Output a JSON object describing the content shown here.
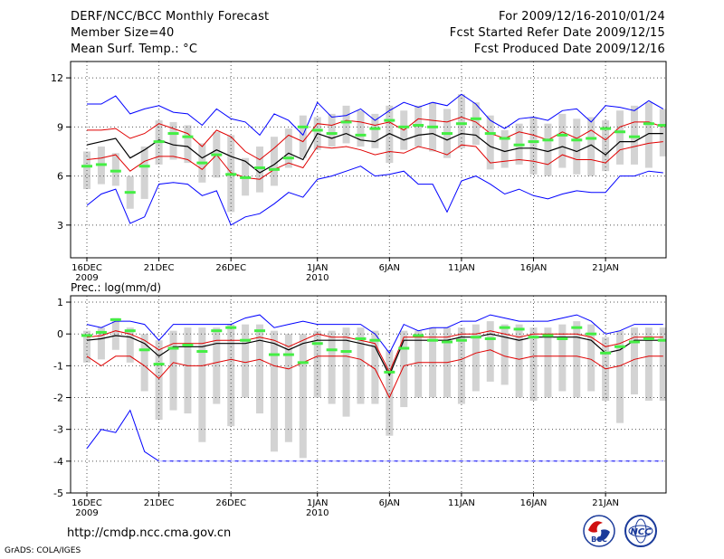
{
  "header": {
    "title": "DERF/NCC/BCC Monthly Forecast",
    "member_size": "Member Size=40",
    "variable": "Mean Surf. Temp.: °C",
    "period": "For 2009/12/16-2010/01/24",
    "start_date": "Fcst Started Refer Date 2009/12/15",
    "produced_date": "Fcst Produced Date 2009/12/16"
  },
  "footer": {
    "url": "http://cmdp.ncc.cma.gov.cn",
    "credit": "GrADS: COLA/IGES"
  },
  "logos": {
    "bcc_text": "BCC",
    "ncc_text": "NCC"
  },
  "colors": {
    "upper_envelope": "#0000ff",
    "lower_envelope": "#0000ff",
    "spread_band": "#e00000",
    "ensemble_mean": "#000000",
    "member_box": "#d3d3d3",
    "median_tick": "#44ee44",
    "grid": "#555555"
  },
  "chart_data": [
    {
      "type": "line",
      "id": "temperature",
      "title": "",
      "ylabel": "Mean Surf. Temp.: °C",
      "ylim": [
        1.0,
        13.0
      ],
      "yticks": [
        3,
        6,
        9,
        12
      ],
      "grid": true,
      "xticks": [
        {
          "day": 0,
          "label": "16DEC",
          "sub": "2009"
        },
        {
          "day": 5,
          "label": "21DEC",
          "sub": ""
        },
        {
          "day": 10,
          "label": "26DEC",
          "sub": ""
        },
        {
          "day": 16,
          "label": "1JAN",
          "sub": "2010"
        },
        {
          "day": 21,
          "label": "6JAN",
          "sub": ""
        },
        {
          "day": 26,
          "label": "11JAN",
          "sub": ""
        },
        {
          "day": 31,
          "label": "16JAN",
          "sub": ""
        },
        {
          "day": 36,
          "label": "21JAN",
          "sub": ""
        }
      ],
      "series": [
        {
          "name": "max",
          "style": "upper_envelope",
          "values": [
            10.4,
            10.4,
            10.9,
            9.8,
            10.1,
            10.3,
            9.9,
            9.8,
            9.1,
            10.1,
            9.5,
            9.3,
            8.5,
            9.8,
            9.4,
            8.5,
            10.5,
            9.6,
            9.7,
            10.1,
            9.4,
            10.0,
            10.5,
            10.2,
            10.5,
            10.3,
            11.0,
            10.4,
            9.4,
            8.9,
            9.5,
            9.6,
            9.4,
            10.0,
            10.1,
            9.3,
            10.3,
            10.2,
            10.0,
            10.6,
            10.1
          ]
        },
        {
          "name": "mean_plus_sd",
          "style": "spread_band",
          "values": [
            8.8,
            8.8,
            8.9,
            8.3,
            8.6,
            9.2,
            8.9,
            8.6,
            7.8,
            8.8,
            8.4,
            7.5,
            7.0,
            7.7,
            8.5,
            8.1,
            9.2,
            9.1,
            9.4,
            9.3,
            9.1,
            9.3,
            8.8,
            9.5,
            9.4,
            9.3,
            9.6,
            9.3,
            8.6,
            8.3,
            8.7,
            8.5,
            8.2,
            8.7,
            8.3,
            8.8,
            8.2,
            9.0,
            9.3,
            9.3,
            9.0
          ]
        },
        {
          "name": "mean",
          "style": "ensemble_mean",
          "values": [
            7.9,
            8.1,
            8.3,
            7.1,
            7.6,
            8.2,
            7.9,
            7.8,
            7.1,
            7.6,
            7.2,
            6.9,
            6.2,
            6.7,
            7.4,
            7.0,
            8.6,
            8.3,
            8.6,
            8.2,
            8.1,
            8.6,
            8.2,
            8.5,
            8.6,
            8.2,
            8.6,
            8.5,
            7.8,
            7.5,
            7.7,
            7.7,
            7.5,
            7.8,
            7.5,
            7.9,
            7.3,
            8.1,
            8.1,
            8.6,
            8.6
          ]
        },
        {
          "name": "mean_minus_sd",
          "style": "spread_band",
          "values": [
            7.0,
            7.1,
            7.3,
            6.3,
            6.9,
            7.2,
            7.2,
            7.0,
            6.4,
            7.3,
            6.2,
            5.9,
            5.8,
            6.4,
            6.8,
            6.5,
            7.8,
            7.7,
            7.8,
            7.6,
            7.3,
            7.5,
            7.4,
            7.8,
            7.6,
            7.3,
            7.9,
            7.8,
            6.8,
            6.9,
            7.0,
            6.9,
            6.7,
            7.3,
            7.0,
            7.0,
            6.8,
            7.6,
            7.8,
            8.0,
            8.1
          ]
        },
        {
          "name": "min",
          "style": "lower_envelope",
          "values": [
            4.2,
            4.9,
            5.2,
            3.1,
            3.5,
            5.5,
            5.6,
            5.5,
            4.8,
            5.1,
            3.0,
            3.5,
            3.7,
            4.3,
            5.0,
            4.7,
            5.8,
            6.0,
            6.3,
            6.6,
            6.0,
            6.1,
            6.3,
            5.5,
            5.5,
            3.8,
            5.7,
            6.0,
            5.5,
            4.9,
            5.2,
            4.8,
            4.6,
            4.9,
            5.1,
            5.0,
            5.0,
            6.0,
            6.0,
            6.3,
            6.2
          ]
        },
        {
          "name": "median",
          "style": "median_tick",
          "values": [
            6.6,
            6.7,
            6.3,
            5.0,
            6.6,
            8.1,
            8.6,
            8.4,
            6.8,
            7.3,
            6.1,
            5.9,
            6.5,
            6.4,
            7.1,
            9.0,
            8.8,
            8.6,
            9.3,
            8.5,
            8.9,
            9.4,
            9.0,
            9.1,
            9.0,
            8.6,
            9.2,
            9.5,
            8.6,
            8.3,
            7.9,
            8.1,
            8.2,
            8.5,
            8.2,
            8.3,
            8.9,
            8.7,
            8.4,
            9.2,
            9.1
          ]
        },
        {
          "name": "box_low",
          "style": "member_box",
          "values": [
            5.2,
            5.5,
            5.4,
            4.0,
            4.6,
            6.7,
            7.0,
            6.8,
            5.6,
            5.9,
            3.8,
            4.8,
            5.0,
            5.4,
            6.5,
            7.1,
            7.6,
            7.8,
            8.0,
            7.8,
            7.7,
            6.8,
            7.6,
            7.8,
            7.5,
            7.1,
            7.7,
            7.9,
            6.4,
            6.5,
            6.7,
            6.1,
            6.0,
            6.5,
            6.1,
            6.0,
            6.3,
            6.7,
            6.7,
            6.5,
            7.2
          ]
        },
        {
          "name": "box_high",
          "style": "member_box",
          "values": [
            7.5,
            7.8,
            7.4,
            6.0,
            7.8,
            9.4,
            9.3,
            9.1,
            8.0,
            8.7,
            8.5,
            7.1,
            7.8,
            8.4,
            8.9,
            9.7,
            9.6,
            9.8,
            10.3,
            10.0,
            9.8,
            10.3,
            10.0,
            10.3,
            10.5,
            10.1,
            11.0,
            10.5,
            9.7,
            8.8,
            9.2,
            9.6,
            9.2,
            9.8,
            9.5,
            9.6,
            9.4,
            10.0,
            10.3,
            10.5,
            10.1
          ]
        }
      ]
    },
    {
      "type": "line",
      "id": "precipitation",
      "title": "Prec.: log(mm/d)",
      "ylabel": "Prec.: log(mm/d)",
      "ylim": [
        -5.0,
        1.2
      ],
      "yticks": [
        -5,
        -4,
        -3,
        -2,
        -1,
        0,
        1
      ],
      "grid": true,
      "xticks": [
        {
          "day": 0,
          "label": "16DEC",
          "sub": "2009"
        },
        {
          "day": 5,
          "label": "21DEC",
          "sub": ""
        },
        {
          "day": 10,
          "label": "26DEC",
          "sub": ""
        },
        {
          "day": 16,
          "label": "1JAN",
          "sub": "2010"
        },
        {
          "day": 21,
          "label": "6JAN",
          "sub": ""
        },
        {
          "day": 26,
          "label": "11JAN",
          "sub": ""
        },
        {
          "day": 31,
          "label": "16JAN",
          "sub": ""
        },
        {
          "day": 36,
          "label": "21JAN",
          "sub": ""
        }
      ],
      "series": [
        {
          "name": "max",
          "style": "upper_envelope",
          "values": [
            0.3,
            0.2,
            0.4,
            0.4,
            0.3,
            -0.2,
            0.3,
            0.3,
            0.3,
            0.3,
            0.3,
            0.5,
            0.6,
            0.2,
            0.3,
            0.4,
            0.3,
            0.3,
            0.3,
            0.3,
            0.0,
            -0.6,
            0.3,
            0.1,
            0.2,
            0.2,
            0.4,
            0.4,
            0.6,
            0.5,
            0.4,
            0.4,
            0.4,
            0.5,
            0.6,
            0.4,
            0.0,
            0.1,
            0.3,
            0.3,
            0.3
          ]
        },
        {
          "name": "mean_plus_sd",
          "style": "spread_band",
          "values": [
            -0.1,
            -0.05,
            0.1,
            0.0,
            -0.2,
            -0.5,
            -0.3,
            -0.3,
            -0.3,
            -0.2,
            -0.2,
            -0.2,
            -0.1,
            -0.2,
            -0.4,
            -0.2,
            0.0,
            -0.1,
            -0.1,
            -0.2,
            -0.3,
            -1.2,
            -0.1,
            -0.1,
            -0.1,
            -0.1,
            0.0,
            0.0,
            0.1,
            0.0,
            -0.1,
            0.0,
            0.0,
            0.0,
            0.0,
            -0.1,
            -0.4,
            -0.3,
            -0.1,
            -0.1,
            -0.1
          ]
        },
        {
          "name": "mean",
          "style": "ensemble_mean",
          "values": [
            -0.2,
            -0.15,
            -0.05,
            -0.1,
            -0.3,
            -0.7,
            -0.4,
            -0.4,
            -0.4,
            -0.3,
            -0.3,
            -0.3,
            -0.2,
            -0.3,
            -0.5,
            -0.3,
            -0.2,
            -0.2,
            -0.2,
            -0.3,
            -0.4,
            -1.3,
            -0.2,
            -0.2,
            -0.2,
            -0.2,
            -0.1,
            -0.1,
            0.0,
            -0.1,
            -0.2,
            -0.1,
            -0.1,
            -0.1,
            -0.1,
            -0.2,
            -0.6,
            -0.5,
            -0.2,
            -0.2,
            -0.2
          ]
        },
        {
          "name": "mean_minus_sd",
          "style": "spread_band",
          "values": [
            -0.7,
            -1.0,
            -0.7,
            -0.7,
            -1.0,
            -1.4,
            -0.9,
            -1.0,
            -1.0,
            -0.9,
            -0.8,
            -0.9,
            -0.8,
            -1.0,
            -1.1,
            -0.9,
            -0.7,
            -0.7,
            -0.7,
            -0.8,
            -1.1,
            -2.0,
            -1.0,
            -0.9,
            -0.9,
            -0.9,
            -0.8,
            -0.6,
            -0.5,
            -0.7,
            -0.8,
            -0.7,
            -0.7,
            -0.7,
            -0.7,
            -0.8,
            -1.1,
            -1.0,
            -0.8,
            -0.7,
            -0.7
          ]
        },
        {
          "name": "min",
          "style": "lower_envelope",
          "values": [
            -3.6,
            -3.0,
            -3.1,
            -2.4,
            -3.7,
            -4.0,
            -4.0,
            -4.0,
            -4.0,
            -4.0,
            -4.0,
            -4.0,
            -4.0,
            -4.0,
            -4.0,
            -4.0,
            -4.0,
            -4.0,
            -4.0,
            -4.0,
            -4.0,
            -4.0,
            -4.0,
            -4.0,
            -4.0,
            -4.0,
            -4.0,
            -4.0,
            -4.0,
            -4.0,
            -4.0,
            -4.0,
            -4.0,
            -4.0,
            -4.0,
            -4.0,
            -4.0,
            -4.0,
            -4.0,
            -4.0,
            -4.0
          ]
        },
        {
          "name": "median",
          "style": "median_tick",
          "values": [
            -0.05,
            0.05,
            0.45,
            0.1,
            -0.5,
            -0.95,
            -0.45,
            -0.35,
            -0.55,
            0.1,
            0.2,
            -0.2,
            0.1,
            -0.65,
            -0.65,
            -0.9,
            -0.3,
            -0.5,
            -0.55,
            -0.15,
            -0.2,
            -1.2,
            -0.45,
            -0.05,
            -0.2,
            -0.25,
            -0.2,
            -0.1,
            -0.15,
            0.2,
            0.15,
            -0.1,
            -0.05,
            -0.15,
            0.2,
            0.0,
            -0.6,
            -0.4,
            -0.25,
            -0.15,
            -0.2
          ]
        },
        {
          "name": "box_low",
          "style": "member_box",
          "values": [
            -0.9,
            -0.8,
            -0.5,
            -0.9,
            -1.8,
            -2.7,
            -2.4,
            -2.5,
            -3.4,
            -2.2,
            -2.9,
            -2.0,
            -2.5,
            -3.7,
            -3.4,
            -3.9,
            -2.0,
            -2.2,
            -2.6,
            -2.2,
            -2.2,
            -3.2,
            -2.3,
            -2.0,
            -2.0,
            -2.0,
            -2.2,
            -1.8,
            -1.5,
            -1.6,
            -2.0,
            -2.1,
            -2.0,
            -1.8,
            -2.0,
            -1.8,
            -2.1,
            -2.8,
            -1.9,
            -2.1,
            -2.1
          ]
        },
        {
          "name": "box_high",
          "style": "member_box",
          "values": [
            0.1,
            0.2,
            0.5,
            0.2,
            0.0,
            -0.2,
            0.1,
            0.2,
            0.2,
            0.2,
            0.3,
            0.3,
            0.3,
            0.1,
            0.0,
            0.0,
            0.1,
            0.1,
            0.2,
            0.2,
            0.1,
            -0.5,
            0.1,
            0.1,
            0.2,
            0.2,
            0.2,
            0.3,
            0.4,
            0.3,
            0.3,
            0.2,
            0.2,
            0.3,
            0.4,
            0.3,
            -0.1,
            0.1,
            0.2,
            0.2,
            0.2
          ]
        }
      ]
    }
  ]
}
